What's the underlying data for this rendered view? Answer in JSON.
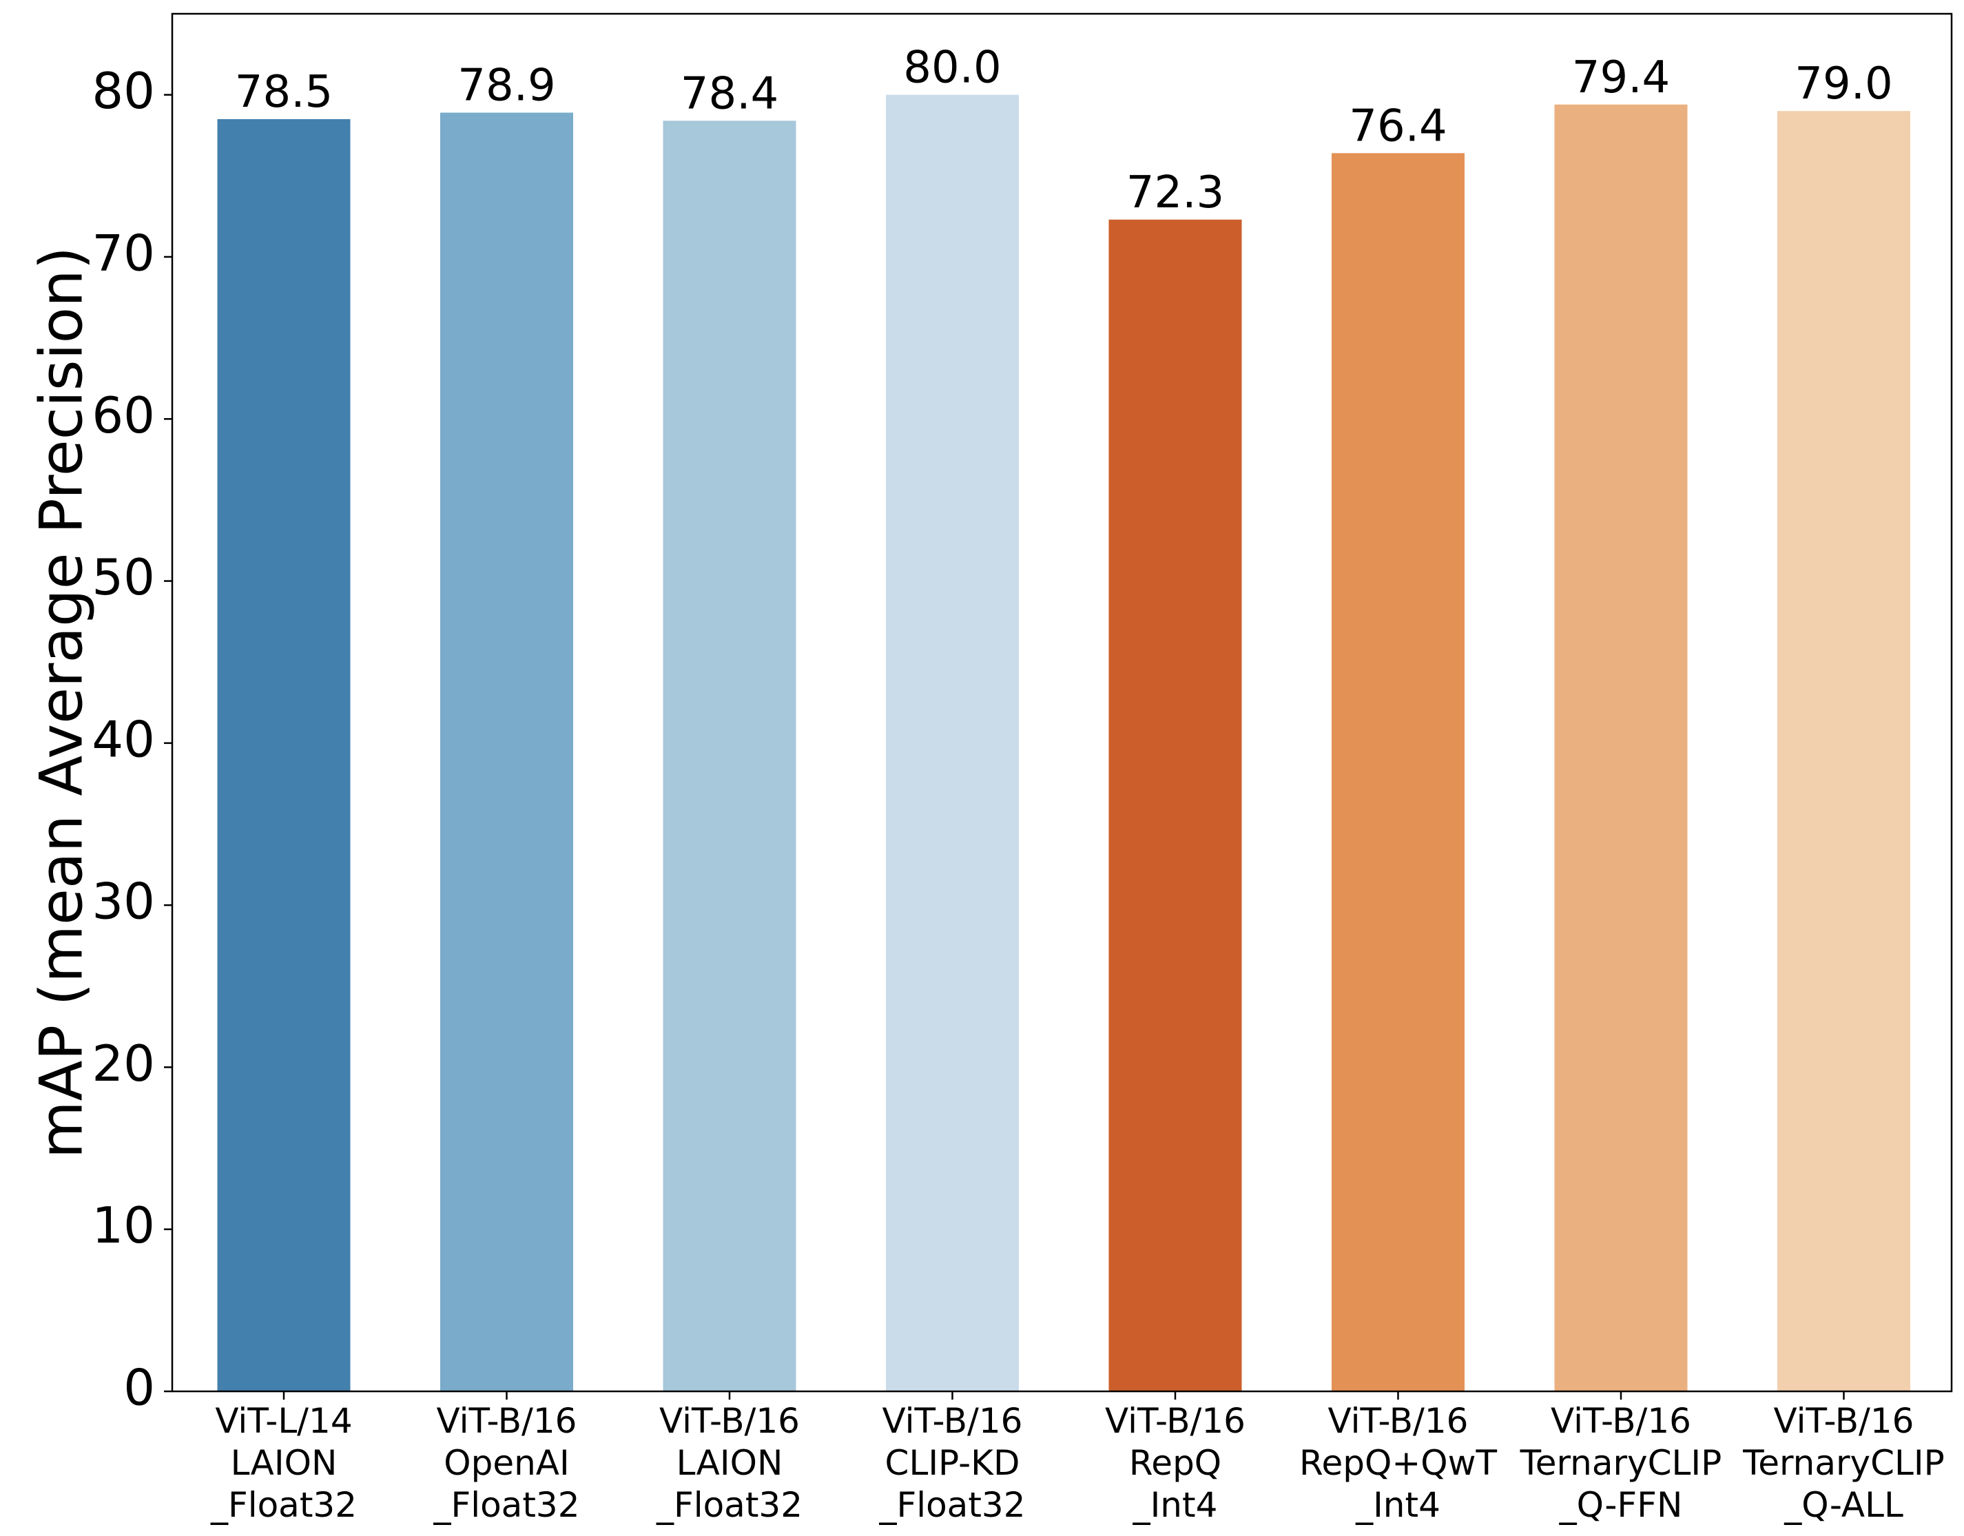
{
  "chart_data": {
    "type": "bar",
    "title": "",
    "xlabel": "",
    "ylabel": "mAP (mean Average Precision)",
    "ylim": [
      0,
      85
    ],
    "yticks": [
      0,
      10,
      20,
      30,
      40,
      50,
      60,
      70,
      80
    ],
    "grid": false,
    "categories": [
      [
        "ViT-L/14",
        "LAION",
        "_Float32"
      ],
      [
        "ViT-B/16",
        "OpenAI",
        "_Float32"
      ],
      [
        "ViT-B/16",
        "LAION",
        "_Float32"
      ],
      [
        "ViT-B/16",
        "CLIP-KD",
        "_Float32"
      ],
      [
        "ViT-B/16",
        "RepQ",
        "_Int4"
      ],
      [
        "ViT-B/16",
        "RepQ+QwT",
        "_Int4"
      ],
      [
        "ViT-B/16",
        "TernaryCLIP",
        "_Q-FFN"
      ],
      [
        "ViT-B/16",
        "TernaryCLIP",
        "_Q-ALL"
      ]
    ],
    "values": [
      78.5,
      78.9,
      78.4,
      80.0,
      72.3,
      76.4,
      79.4,
      79.0
    ],
    "value_labels": [
      "78.5",
      "78.9",
      "78.4",
      "80.0",
      "72.3",
      "76.4",
      "79.4",
      "79.0"
    ],
    "colors": [
      "#4480ad",
      "#7aabca",
      "#a7c7da",
      "#cadcea",
      "#cb5e2a",
      "#e49155",
      "#ebb07f",
      "#f2cfad"
    ]
  }
}
